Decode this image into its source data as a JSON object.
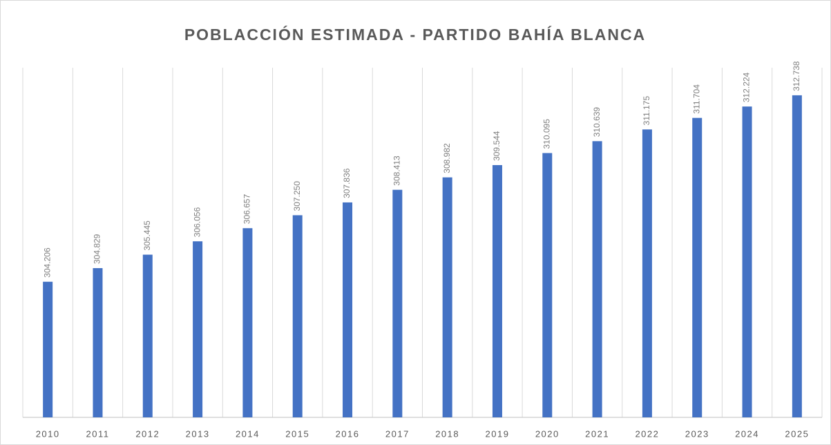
{
  "chart_data": {
    "type": "bar",
    "title": "POBLACCIÓN ESTIMADA - PARTIDO BAHÍA BLANCA",
    "categories": [
      "2010",
      "2011",
      "2012",
      "2013",
      "2014",
      "2015",
      "2016",
      "2017",
      "2018",
      "2019",
      "2020",
      "2021",
      "2022",
      "2023",
      "2024",
      "2025"
    ],
    "values": [
      304206,
      304829,
      305445,
      306056,
      306657,
      307250,
      307836,
      308413,
      308982,
      309544,
      310095,
      310639,
      311175,
      311704,
      312224,
      312738
    ],
    "value_labels": [
      "304.206",
      "304.829",
      "305.445",
      "306.056",
      "306.657",
      "307.250",
      "307.836",
      "308.413",
      "308.982",
      "309.544",
      "310.095",
      "310.639",
      "311.175",
      "311.704",
      "312.224",
      "312.738"
    ],
    "color": "#4472c4",
    "ylim": [
      298000,
      314000
    ]
  }
}
